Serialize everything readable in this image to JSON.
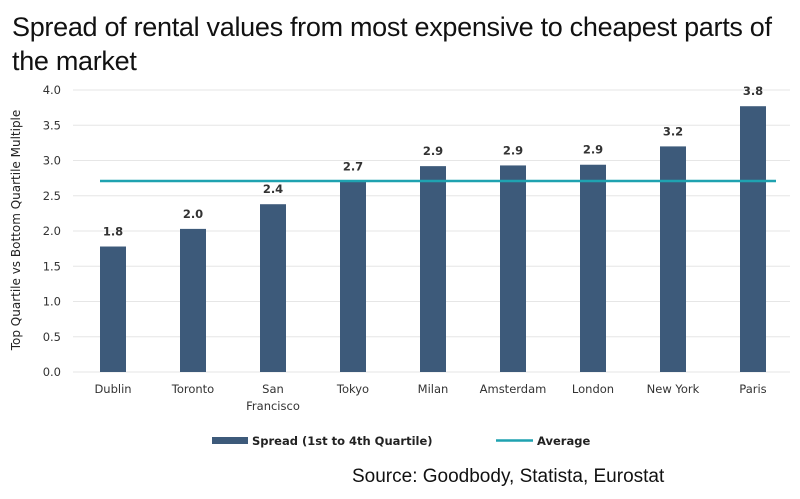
{
  "chart_data": {
    "type": "bar",
    "title": "Spread of rental values from most expensive to cheapest parts of the market",
    "xlabel": "",
    "ylabel": "Top Quartile vs Bottom Quartile Multiple",
    "ylim": [
      0,
      4.0
    ],
    "yticks": [
      "0.0",
      "0.5",
      "1.0",
      "1.5",
      "2.0",
      "2.5",
      "3.0",
      "3.5",
      "4.0"
    ],
    "grid": true,
    "categories": [
      "Dublin",
      "Toronto",
      "San Francisco",
      "Tokyo",
      "Milan",
      "Amsterdam",
      "London",
      "New York",
      "Paris"
    ],
    "category_lines": [
      [
        "Dublin"
      ],
      [
        "Toronto"
      ],
      [
        "San",
        "Francisco"
      ],
      [
        "Tokyo"
      ],
      [
        "Milan"
      ],
      [
        "Amsterdam"
      ],
      [
        "London"
      ],
      [
        "New York"
      ],
      [
        "Paris"
      ]
    ],
    "series": [
      {
        "name": "Spread (1st to 4th Quartile)",
        "type": "bar",
        "color": "#3d5a7a",
        "values": [
          1.78,
          2.03,
          2.38,
          2.7,
          2.92,
          2.93,
          2.94,
          3.2,
          3.77
        ],
        "labels": [
          "1.8",
          "2.0",
          "2.4",
          "2.7",
          "2.9",
          "2.9",
          "2.9",
          "3.2",
          "3.8"
        ]
      },
      {
        "name": "Average",
        "type": "line",
        "color": "#1fa2b0",
        "value": 2.71
      }
    ],
    "legend_position": "bottom",
    "source": "Source: Goodbody, Statista, Eurostat"
  }
}
